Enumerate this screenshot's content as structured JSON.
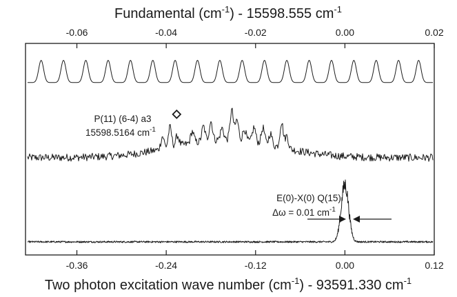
{
  "chart_data": {
    "type": "line",
    "title": "",
    "top_axis": {
      "label_prefix": "Fundamental (cm",
      "label_sup": "-1",
      "label_suffix": ") - 15598.555 cm",
      "label_end_sup": "-1",
      "xlim": [
        -0.0715,
        0.02
      ],
      "ticks": [
        -0.06,
        -0.04,
        -0.02,
        0.0,
        0.02
      ],
      "tick_labels": [
        "-0.06",
        "-0.04",
        "-0.02",
        "0.00",
        "0.02"
      ]
    },
    "bottom_axis": {
      "label_prefix": "Two photon excitation wave number (cm",
      "label_sup": "-1",
      "label_suffix": ") - 93591.330 cm",
      "label_end_sup": "-1",
      "xlim": [
        -0.429,
        0.12
      ],
      "ticks": [
        -0.36,
        -0.24,
        -0.12,
        0.0,
        0.12
      ],
      "tick_labels": [
        "-0.36",
        "-0.24",
        "-0.12",
        "0.00",
        "0.12"
      ]
    },
    "y_axis": {
      "ticks": false,
      "grid": false,
      "ylim": [
        0,
        1
      ]
    },
    "series": [
      {
        "kind": "etalon",
        "level": 0.815,
        "amplitude": 0.105,
        "peak_positions_top": [
          -0.068,
          -0.063,
          -0.058,
          -0.053,
          -0.048,
          -0.043,
          -0.038,
          -0.033,
          -0.028,
          -0.023,
          -0.018,
          -0.013,
          -0.008,
          -0.003,
          0.002,
          0.007,
          0.012,
          0.0165
        ],
        "peak_width": 0.00055
      },
      {
        "kind": "spectrum",
        "baseline_start": 0.46,
        "baseline_end": 0.46,
        "hump_center": -0.16,
        "hump_height": 0.085,
        "hump_width": 0.07,
        "noise": 0.018,
        "peaks": [
          {
            "x": -0.245,
            "h": 0.06
          },
          {
            "x": -0.235,
            "h": 0.095
          },
          {
            "x": -0.225,
            "h": 0.05
          },
          {
            "x": -0.205,
            "h": 0.055
          },
          {
            "x": -0.19,
            "h": 0.07
          },
          {
            "x": -0.18,
            "h": 0.09
          },
          {
            "x": -0.165,
            "h": 0.055
          },
          {
            "x": -0.152,
            "h": 0.14
          },
          {
            "x": -0.145,
            "h": 0.095
          },
          {
            "x": -0.135,
            "h": 0.055
          },
          {
            "x": -0.122,
            "h": 0.07
          },
          {
            "x": -0.11,
            "h": 0.075
          },
          {
            "x": -0.1,
            "h": 0.055
          },
          {
            "x": -0.085,
            "h": 0.12
          },
          {
            "x": -0.078,
            "h": 0.06
          }
        ]
      },
      {
        "kind": "resonance",
        "baseline": 0.062,
        "center": 0.0,
        "height": 0.27,
        "width": 0.005,
        "noise": 0.004
      }
    ],
    "annotations": {
      "p_line_label": "P(11) (6-4) a3",
      "p_value_prefix": "15598.5164 cm",
      "p_value_sup": "-1",
      "marker_position_bottom": -0.238,
      "marker_level": 0.665,
      "e_line_label": "E(0)-X(0) Q(15)",
      "width_prefix": "Δω = 0.01 cm",
      "width_sup": "-1"
    }
  }
}
